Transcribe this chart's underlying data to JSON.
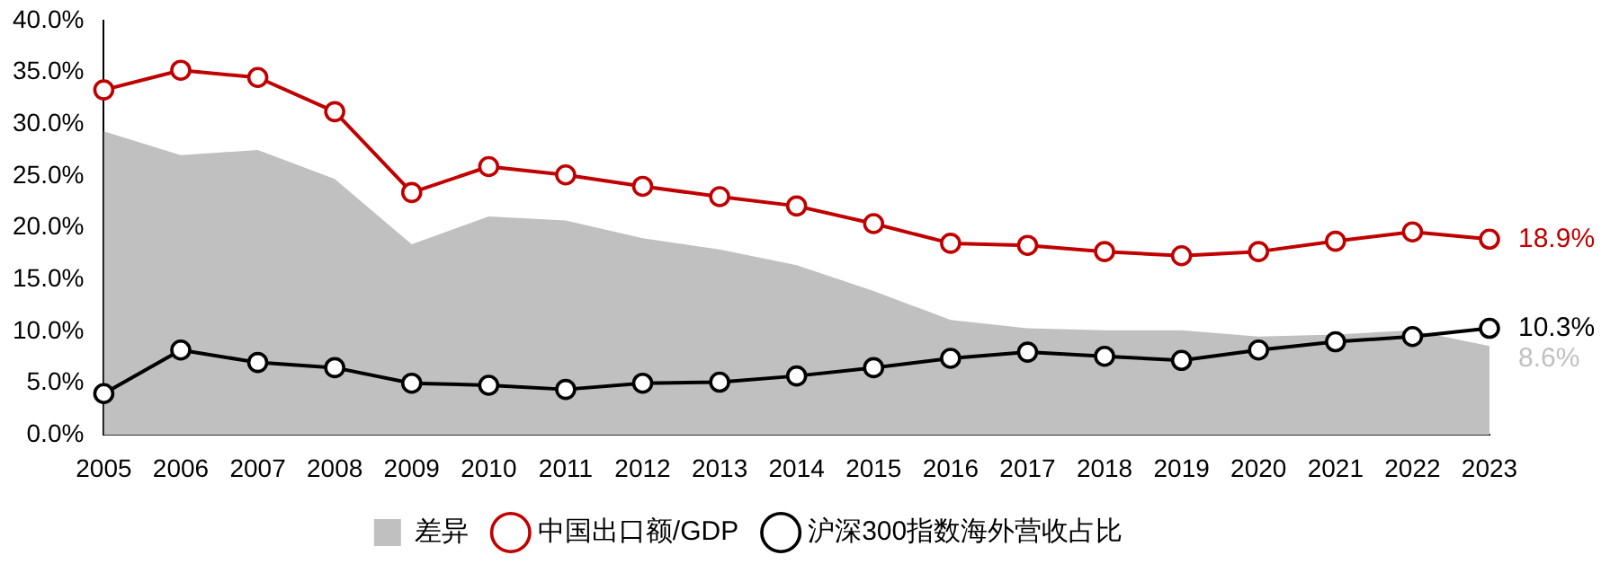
{
  "chart_data": {
    "type": "line",
    "categories": [
      "2005",
      "2006",
      "2007",
      "2008",
      "2009",
      "2010",
      "2011",
      "2012",
      "2013",
      "2014",
      "2015",
      "2016",
      "2017",
      "2018",
      "2019",
      "2020",
      "2021",
      "2022",
      "2023"
    ],
    "series": [
      {
        "name": "差异",
        "type": "area",
        "color": "#c0c0c0",
        "values": [
          29.3,
          27.0,
          27.5,
          24.7,
          18.4,
          21.1,
          20.7,
          19.0,
          17.9,
          16.4,
          13.9,
          11.1,
          10.3,
          10.1,
          10.1,
          9.5,
          9.7,
          10.1,
          8.6
        ]
      },
      {
        "name": "中国出口额/GDP",
        "color": "#c00000",
        "marker": "circle",
        "values": [
          33.3,
          35.2,
          34.5,
          31.2,
          23.4,
          25.9,
          25.1,
          24.0,
          23.0,
          22.1,
          20.4,
          18.5,
          18.3,
          17.7,
          17.3,
          17.7,
          18.7,
          19.6,
          18.9
        ]
      },
      {
        "name": "沪深300指数海外营收占比",
        "color": "#000000",
        "marker": "circle",
        "values": [
          4.0,
          8.2,
          7.0,
          6.5,
          5.0,
          4.8,
          4.4,
          5.0,
          5.1,
          5.7,
          6.5,
          7.4,
          8.0,
          7.6,
          7.2,
          8.2,
          9.0,
          9.5,
          10.3
        ]
      }
    ],
    "ylim": [
      0,
      40
    ],
    "yticks": [
      {
        "value": 0,
        "label": "0.0%"
      },
      {
        "value": 5,
        "label": "5.0%"
      },
      {
        "value": 10,
        "label": "10.0%"
      },
      {
        "value": 15,
        "label": "15.0%"
      },
      {
        "value": 20,
        "label": "20.0%"
      },
      {
        "value": 25,
        "label": "25.0%"
      },
      {
        "value": 30,
        "label": "30.0%"
      },
      {
        "value": 35,
        "label": "35.0%"
      },
      {
        "value": 40,
        "label": "40.0%"
      }
    ],
    "annotations": [
      {
        "text": "18.9%",
        "x": "2023",
        "y": 18.9
      },
      {
        "text": "10.3%",
        "x": "2023",
        "y": 10.3
      },
      {
        "text": "8.6%",
        "x": "2023",
        "y": 8.6
      }
    ],
    "grid": false,
    "legend": "bottom",
    "line_style": "solid"
  }
}
